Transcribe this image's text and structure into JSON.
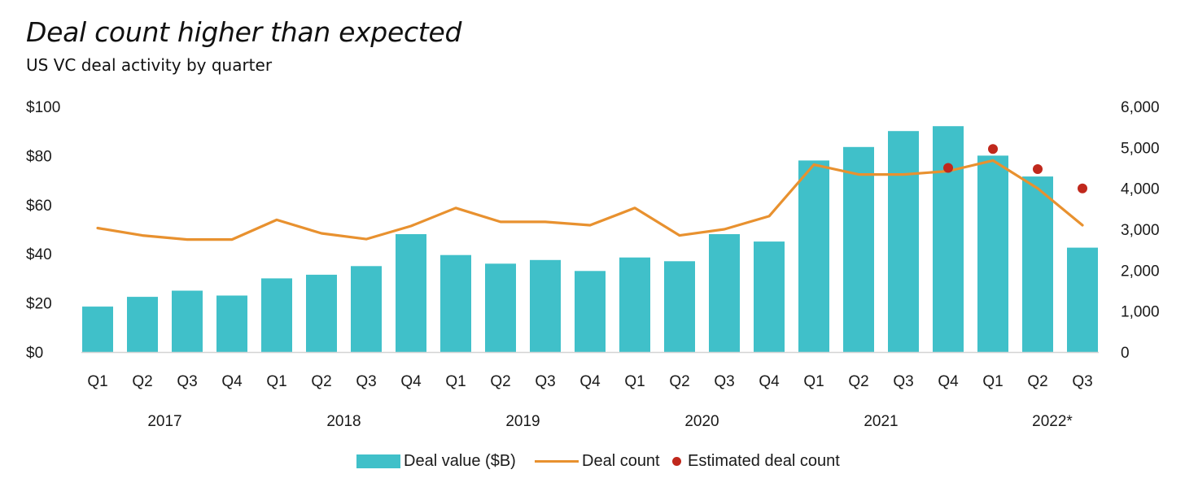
{
  "header": {
    "title": "Deal count higher than expected",
    "subtitle": "US VC deal activity by quarter"
  },
  "colors": {
    "bar": "#40c0c9",
    "line": "#e8912f",
    "estimate": "#c0281c"
  },
  "legend": {
    "bar_label": "Deal value ($B)",
    "line_label": "Deal count",
    "dot_label": "Estimated deal count"
  },
  "chart_data": {
    "type": "bar",
    "title": "Deal count higher than expected",
    "subtitle": "US VC deal activity by quarter",
    "categories": [
      "Q1",
      "Q2",
      "Q3",
      "Q4",
      "Q1",
      "Q2",
      "Q3",
      "Q4",
      "Q1",
      "Q2",
      "Q3",
      "Q4",
      "Q1",
      "Q2",
      "Q3",
      "Q4",
      "Q1",
      "Q2",
      "Q3",
      "Q4",
      "Q1",
      "Q2",
      "Q3"
    ],
    "years": [
      {
        "label": "2017",
        "start": 0,
        "end": 3
      },
      {
        "label": "2018",
        "start": 4,
        "end": 7
      },
      {
        "label": "2019",
        "start": 8,
        "end": 11
      },
      {
        "label": "2020",
        "start": 12,
        "end": 15
      },
      {
        "label": "2021",
        "start": 16,
        "end": 19
      },
      {
        "label": "2022*",
        "start": 20,
        "end": 22
      }
    ],
    "y_left": {
      "range": [
        0,
        100
      ],
      "ticks": [
        0,
        20,
        40,
        60,
        80,
        100
      ],
      "tick_labels": [
        "$0",
        "$20",
        "$40",
        "$60",
        "$80",
        "$100"
      ]
    },
    "y_right": {
      "range": [
        0,
        6000
      ],
      "ticks": [
        0,
        1000,
        2000,
        3000,
        4000,
        5000,
        6000
      ],
      "tick_labels": [
        "0",
        "1,000",
        "2,000",
        "3,000",
        "4,000",
        "5,000",
        "6,000"
      ]
    },
    "series": [
      {
        "name": "Deal value ($B)",
        "type": "bar",
        "axis": "left",
        "values": [
          18.5,
          22.5,
          25,
          23,
          30,
          31.5,
          35,
          48,
          39.5,
          36,
          37.5,
          33,
          38.5,
          37,
          48,
          45,
          78,
          83.5,
          90,
          92,
          80,
          71.5,
          42.5
        ]
      },
      {
        "name": "Deal count",
        "type": "line",
        "axis": "right",
        "values": [
          3030,
          2850,
          2750,
          2750,
          3230,
          2900,
          2760,
          3080,
          3520,
          3180,
          3180,
          3100,
          3520,
          2850,
          3000,
          3320,
          4580,
          4340,
          4340,
          4420,
          4680,
          4000,
          3100
        ]
      },
      {
        "name": "Estimated deal count",
        "type": "scatter",
        "axis": "right",
        "points": [
          {
            "index": 19,
            "value": 4500
          },
          {
            "index": 20,
            "value": 4960
          },
          {
            "index": 21,
            "value": 4470
          },
          {
            "index": 22,
            "value": 4000
          }
        ]
      }
    ],
    "legend_position": "bottom",
    "grid": false
  }
}
